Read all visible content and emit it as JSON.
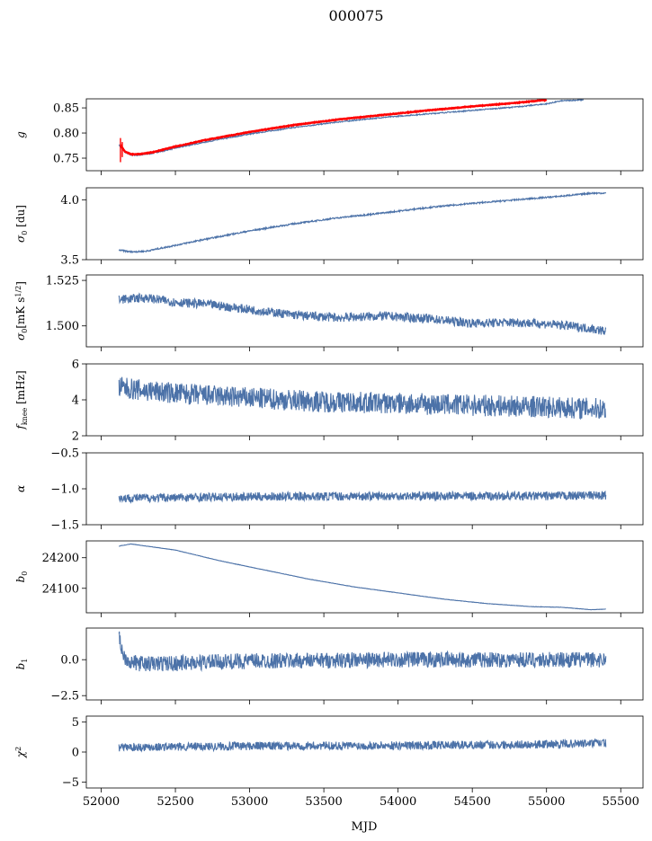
{
  "figure_title": "000075",
  "x_axis": {
    "label": "MJD",
    "ticks": [
      52000,
      52500,
      53000,
      53500,
      54000,
      54500,
      55000,
      55500
    ],
    "lim": [
      51900,
      55650
    ]
  },
  "colors": {
    "series": "#4c72a8",
    "overlay": "#ff0000",
    "axes": "#000000"
  },
  "chart_data": [
    {
      "type": "line",
      "ylabel": "g",
      "ylim": [
        0.725,
        0.868
      ],
      "yticks": [
        0.75,
        0.8,
        0.85
      ],
      "ytick_labels": [
        "0.75",
        "0.80",
        "0.85"
      ],
      "series": [
        {
          "x": [
            52120,
            52160,
            52200,
            52260,
            52350,
            52500,
            52700,
            53000,
            53300,
            53600,
            53900,
            54200,
            54500,
            54800,
            55000,
            55100,
            55250
          ],
          "values": [
            0.776,
            0.762,
            0.756,
            0.756,
            0.76,
            0.77,
            0.782,
            0.798,
            0.811,
            0.822,
            0.831,
            0.838,
            0.845,
            0.852,
            0.858,
            0.864,
            0.866
          ],
          "noise": 0.001
        },
        {
          "x": [
            52130,
            52160,
            52200,
            52260,
            52350,
            52500,
            52700,
            53000,
            53300,
            53600,
            53900,
            54200,
            54500,
            54800,
            55000
          ],
          "values": [
            0.776,
            0.763,
            0.758,
            0.758,
            0.762,
            0.773,
            0.786,
            0.802,
            0.816,
            0.827,
            0.836,
            0.845,
            0.853,
            0.86,
            0.866
          ],
          "noise": 0.001,
          "overlay": true
        }
      ]
    },
    {
      "type": "line",
      "ylabel": "σ0 [du]",
      "ylim": [
        3.5,
        4.1
      ],
      "yticks": [
        3.5,
        4.0
      ],
      "ytick_labels": [
        "3.5",
        "4.0"
      ],
      "series": [
        {
          "x": [
            52120,
            52200,
            52300,
            52500,
            52700,
            53000,
            53300,
            53600,
            53900,
            54200,
            54500,
            54800,
            55100,
            55300,
            55400
          ],
          "values": [
            3.58,
            3.565,
            3.57,
            3.62,
            3.67,
            3.74,
            3.8,
            3.85,
            3.89,
            3.935,
            3.97,
            4.0,
            4.03,
            4.055,
            4.055
          ],
          "noise": 0.006
        }
      ]
    },
    {
      "type": "line",
      "ylabel": "σ0[mK s1/2]",
      "ylim": [
        1.4885,
        1.528
      ],
      "yticks": [
        1.5,
        1.525
      ],
      "ytick_labels": [
        "1.500",
        "1.525"
      ],
      "series": [
        {
          "x": [
            52120,
            52300,
            52500,
            52700,
            53000,
            53300,
            53600,
            53900,
            54200,
            54500,
            54800,
            55100,
            55300,
            55400
          ],
          "values": [
            1.5145,
            1.5155,
            1.513,
            1.512,
            1.509,
            1.506,
            1.5045,
            1.5055,
            1.504,
            1.5015,
            1.502,
            1.5005,
            1.4985,
            1.497
          ],
          "noise": 0.0025
        }
      ]
    },
    {
      "type": "line",
      "ylabel": "fknee [mHz]",
      "ylim": [
        2,
        6
      ],
      "yticks": [
        2,
        4,
        6
      ],
      "ytick_labels": [
        "2",
        "4",
        "6"
      ],
      "series": [
        {
          "x": [
            52120,
            52300,
            52600,
            53000,
            53500,
            54000,
            54500,
            55000,
            55400
          ],
          "values": [
            4.7,
            4.5,
            4.3,
            4.1,
            3.9,
            3.8,
            3.7,
            3.6,
            3.5
          ],
          "noise": 0.6
        }
      ]
    },
    {
      "type": "line",
      "ylabel": "α",
      "ylim": [
        -1.5,
        -0.5
      ],
      "yticks": [
        -1.5,
        -1.0,
        -0.5
      ],
      "ytick_labels": [
        "−1.5",
        "−1.0",
        "−0.5"
      ],
      "series": [
        {
          "x": [
            52120,
            53000,
            54000,
            55000,
            55400
          ],
          "values": [
            -1.13,
            -1.11,
            -1.1,
            -1.1,
            -1.09
          ],
          "noise": 0.06
        }
      ]
    },
    {
      "type": "line",
      "ylabel": "b0",
      "ylim": [
        24020,
        24255
      ],
      "yticks": [
        24100,
        24200
      ],
      "ytick_labels": [
        "24100",
        "24200"
      ],
      "series": [
        {
          "x": [
            52120,
            52200,
            52500,
            52800,
            53100,
            53400,
            53700,
            54000,
            54300,
            54600,
            54900,
            55100,
            55300,
            55400
          ],
          "values": [
            24238,
            24245,
            24225,
            24190,
            24160,
            24130,
            24105,
            24085,
            24065,
            24050,
            24040,
            24038,
            24030,
            24032
          ],
          "noise": 0.5
        }
      ]
    },
    {
      "type": "line",
      "ylabel": "b1",
      "ylim": [
        -2.8,
        2.2
      ],
      "yticks": [
        -2.5,
        0.0
      ],
      "ytick_labels": [
        "−2.5",
        "0.0"
      ],
      "series": [
        {
          "x": [
            52120,
            52150,
            52200,
            52300,
            53000,
            54000,
            55000,
            55400
          ],
          "values": [
            1.6,
            0.3,
            -0.2,
            -0.3,
            -0.1,
            0.0,
            0.0,
            0.0
          ],
          "noise": 0.55
        }
      ]
    },
    {
      "type": "line",
      "ylabel": "χ2",
      "ylim": [
        -6,
        6
      ],
      "yticks": [
        -5,
        0,
        5
      ],
      "ytick_labels": [
        "−5",
        "0",
        "5"
      ],
      "series": [
        {
          "x": [
            52120,
            53000,
            54000,
            55000,
            55400
          ],
          "values": [
            0.8,
            1.0,
            1.1,
            1.3,
            1.5
          ],
          "noise": 0.7
        }
      ]
    }
  ]
}
